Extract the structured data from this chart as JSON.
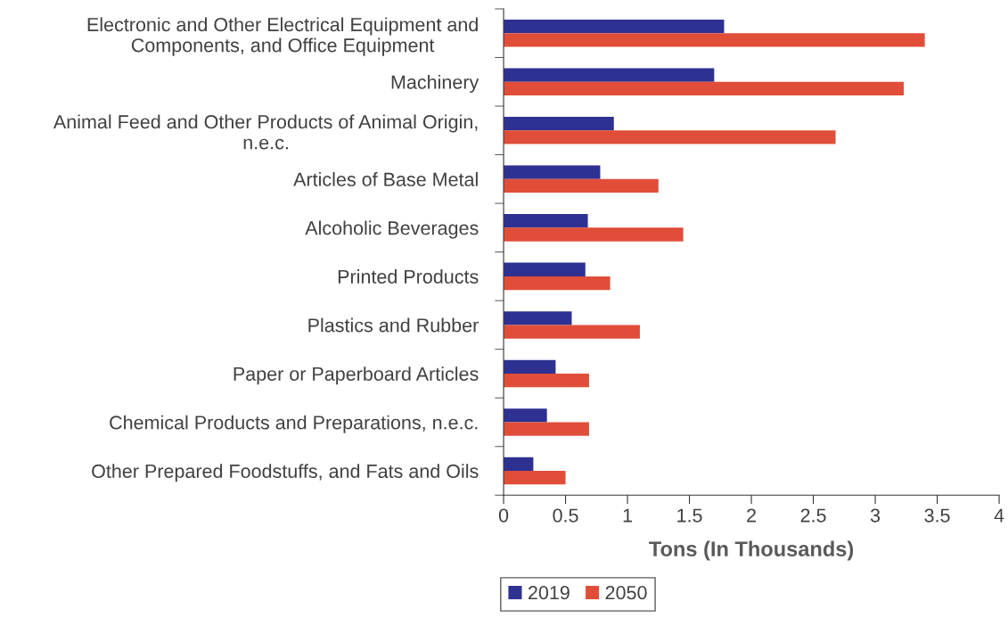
{
  "chart_data": {
    "type": "bar",
    "orientation": "horizontal",
    "categories": [
      "Electronic and Other Electrical Equipment and\nComponents, and Office Equipment",
      "Machinery",
      "Animal Feed and Other Products of Animal Origin,\nn.e.c.",
      "Articles of Base Metal",
      "Alcoholic Beverages",
      "Printed Products",
      "Plastics and Rubber",
      "Paper or Paperboard Articles",
      "Chemical Products and Preparations, n.e.c.",
      "Other Prepared Foodstuffs, and Fats and Oils"
    ],
    "series": [
      {
        "name": "2019",
        "color": "#2e3192",
        "values": [
          1.78,
          1.7,
          0.89,
          0.78,
          0.68,
          0.66,
          0.55,
          0.42,
          0.35,
          0.24
        ]
      },
      {
        "name": "2050",
        "color": "#e04e39",
        "values": [
          3.4,
          3.23,
          2.68,
          1.25,
          1.45,
          0.86,
          1.1,
          0.69,
          0.69,
          0.5
        ]
      }
    ],
    "xlabel": "Tons (In Thousands)",
    "xlim": [
      0,
      4
    ],
    "xticks": [
      0,
      {
        "value": 0.5,
        "label": "0.5"
      },
      1,
      {
        "value": 1.5,
        "label": "1.5"
      },
      2,
      {
        "value": 2.5,
        "label": "2.5"
      },
      3,
      {
        "value": 3.5,
        "label": "3.5"
      },
      4
    ],
    "grid": false,
    "legend": "bottom"
  }
}
